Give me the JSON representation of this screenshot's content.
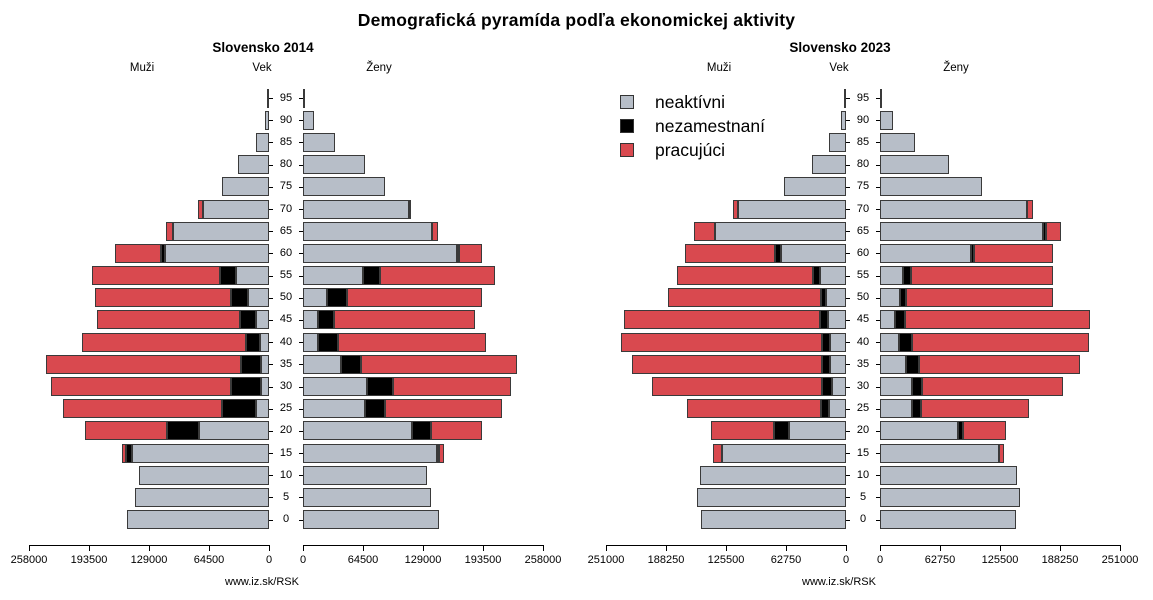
{
  "page": {
    "title": "Demografická pyramída podľa ekonomickej aktivity"
  },
  "colors": {
    "working": "#d9494f",
    "unemployed": "#000000",
    "inactive": "#b7bec8",
    "bar_border": "#3a3a3a",
    "axis": "#000000"
  },
  "legend": {
    "items": [
      {
        "label": "neaktívni",
        "color": "#b7bec8"
      },
      {
        "label": "nezamestnaní",
        "color": "#000000"
      },
      {
        "label": "pracujúci",
        "color": "#d9494f"
      }
    ]
  },
  "chart_data": [
    {
      "type": "bar",
      "subtype": "population_pyramid",
      "title": "Slovensko 2014",
      "left_header": "Muži",
      "center_header": "Vek",
      "right_header": "Ženy",
      "credit": "www.iz.sk/RSK",
      "axis_max": 258000,
      "left_axis_ticks": [
        258000,
        193500,
        129000,
        64500,
        0
      ],
      "right_axis_ticks": [
        0,
        64500,
        129000,
        193500,
        258000
      ],
      "categories": [
        "pracujúci",
        "nezamestnaní",
        "neaktívni"
      ],
      "ages": [
        95,
        90,
        85,
        80,
        75,
        70,
        65,
        60,
        55,
        50,
        45,
        40,
        35,
        30,
        25,
        20,
        15,
        10,
        5,
        0
      ],
      "series": {
        "muzi": {
          "pracujuci": [
            0,
            0,
            0,
            0,
            0,
            4600,
            7200,
            49100,
            138300,
            146600,
            153000,
            176300,
            210300,
            193500,
            171300,
            88900,
            4700,
            0,
            0,
            0
          ],
          "nezamestnani": [
            0,
            0,
            0,
            0,
            0,
            0,
            0,
            4600,
            17200,
            18600,
            18000,
            15000,
            21500,
            32300,
            36500,
            33700,
            6100,
            0,
            0,
            0
          ],
          "neaktivni": [
            1000,
            4600,
            14300,
            33300,
            50100,
            71300,
            103100,
            111400,
            35100,
            22200,
            13600,
            9300,
            8200,
            8200,
            13600,
            75600,
            147300,
            140100,
            144400,
            152600
          ]
        },
        "zeny": {
          "pracujuci": [
            0,
            0,
            0,
            0,
            0,
            2300,
            5500,
            24400,
            123900,
            145000,
            151200,
            159600,
            167600,
            127100,
            125700,
            54700,
            5500,
            0,
            0,
            0
          ],
          "nezamestnani": [
            0,
            0,
            0,
            0,
            0,
            0,
            0,
            1000,
            18200,
            20800,
            17100,
            20800,
            21900,
            27300,
            21900,
            20000,
            2500,
            0,
            0,
            0
          ],
          "neaktivni": [
            1500,
            11700,
            34600,
            67000,
            88200,
            113500,
            139100,
            165800,
            64500,
            26200,
            16400,
            16400,
            40800,
            69200,
            66300,
            117300,
            143900,
            133000,
            137400,
            146500
          ]
        }
      }
    },
    {
      "type": "bar",
      "subtype": "population_pyramid",
      "title": "Slovensko 2023",
      "left_header": "Muži",
      "center_header": "Vek",
      "right_header": "Ženy",
      "credit": "www.iz.sk/RSK",
      "axis_max": 251000,
      "left_axis_ticks": [
        251000,
        188250,
        125500,
        62750,
        0
      ],
      "right_axis_ticks": [
        0,
        62750,
        125500,
        188250,
        251000
      ],
      "categories": [
        "pracujúci",
        "nezamestnaní",
        "neaktívni"
      ],
      "ages": [
        95,
        90,
        85,
        80,
        75,
        70,
        65,
        60,
        55,
        50,
        45,
        40,
        35,
        30,
        25,
        20,
        15,
        10,
        5,
        0
      ],
      "series": {
        "muzi": {
          "pracujuci": [
            0,
            0,
            0,
            0,
            0,
            5300,
            22500,
            94200,
            142100,
            159300,
            204700,
            210300,
            198000,
            178000,
            140000,
            66500,
            9800,
            0,
            0,
            0
          ],
          "nezamestnani": [
            0,
            0,
            0,
            0,
            0,
            0,
            0,
            6000,
            7100,
            5300,
            8100,
            8800,
            8800,
            10200,
            8800,
            15100,
            0,
            0,
            0,
            0
          ],
          "neaktivni": [
            1200,
            5300,
            17600,
            35900,
            65100,
            113200,
            136500,
            67900,
            27400,
            21100,
            19300,
            16600,
            16600,
            15100,
            17600,
            59800,
            129800,
            153000,
            155800,
            151200
          ]
        },
        "zeny": {
          "pracujuci": [
            0,
            0,
            0,
            0,
            0,
            7100,
            15500,
            82600,
            148000,
            154100,
            193400,
            185300,
            168100,
            147700,
            113600,
            45100,
            5300,
            0,
            0,
            0
          ],
          "nezamestnani": [
            0,
            0,
            0,
            0,
            0,
            0,
            3500,
            3500,
            8400,
            6000,
            10600,
            13400,
            13000,
            9800,
            9500,
            6000,
            0,
            0,
            0,
            0
          ],
          "neaktivni": [
            1800,
            13400,
            36600,
            72500,
            106900,
            153300,
            170200,
            95300,
            24300,
            20800,
            15500,
            19700,
            27700,
            33800,
            33000,
            81200,
            124500,
            143500,
            146300,
            142100
          ]
        }
      }
    }
  ]
}
